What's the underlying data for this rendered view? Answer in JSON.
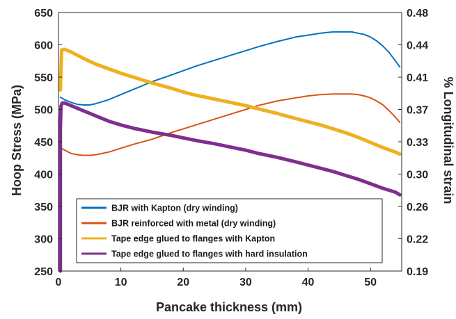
{
  "chart_data": {
    "type": "line",
    "xlabel": "Pancake thickness (mm)",
    "ylabel_left": "Hoop Stress (MPa)",
    "ylabel_right": "% Longitudinal strain",
    "xlim": [
      0,
      55
    ],
    "ylim_left": [
      250,
      650
    ],
    "ylim_right": [
      0.19,
      0.48
    ],
    "x_ticks": [
      "0",
      "10",
      "20",
      "30",
      "40",
      "50"
    ],
    "y_left_ticks": [
      "250",
      "300",
      "350",
      "400",
      "450",
      "500",
      "550",
      "600",
      "650"
    ],
    "y_right_ticks": [
      "0.19",
      "0.22",
      "0.26",
      "0.30",
      "0.33",
      "0.37",
      "0.41",
      "0.44",
      "0.48"
    ],
    "grid": false,
    "legend_position": "bottom-left",
    "series": [
      {
        "name": "BJR with Kapton (dry winding)",
        "color": "#0072BD",
        "axis": "left",
        "x": [
          0.3,
          1,
          2,
          3,
          4,
          5,
          6,
          8,
          10,
          12,
          15,
          18,
          20,
          22,
          25,
          28,
          30,
          32,
          35,
          38,
          40,
          42,
          44,
          46,
          47,
          48,
          49,
          50,
          51,
          52,
          53,
          54,
          54.7
        ],
        "y": [
          519,
          515,
          511,
          508,
          507,
          507,
          509,
          515,
          523,
          531,
          543,
          553,
          560,
          567,
          576,
          585,
          591,
          597,
          605,
          612,
          615,
          618,
          620,
          620,
          620,
          618,
          616,
          612,
          606,
          598,
          588,
          575,
          566
        ]
      },
      {
        "name": "BJR reinforced with metal (dry winding)",
        "color": "#D95319",
        "axis": "left",
        "x": [
          0.3,
          1,
          2,
          3,
          4,
          5,
          6,
          8,
          10,
          12,
          15,
          18,
          20,
          22,
          25,
          28,
          30,
          32,
          35,
          38,
          40,
          42,
          44,
          46,
          47,
          48,
          49,
          50,
          51,
          52,
          53,
          54,
          54.7
        ],
        "y": [
          441,
          437,
          432,
          430,
          429,
          429,
          430,
          434,
          440,
          446,
          454,
          464,
          470,
          476,
          485,
          494,
          500,
          506,
          513,
          518,
          521,
          523,
          524,
          524,
          524,
          523,
          521,
          518,
          513,
          507,
          498,
          488,
          480
        ]
      },
      {
        "name": "Tape edge glued to flanges with Kapton",
        "color": "#EDB120",
        "axis": "left",
        "x": [
          0.3,
          0.5,
          1,
          2,
          4,
          6,
          8,
          10,
          12,
          15,
          18,
          20,
          22,
          25,
          28,
          30,
          32,
          35,
          38,
          40,
          42,
          44,
          46,
          48,
          50,
          52,
          54,
          54.7
        ],
        "y": [
          530,
          592,
          593,
          589,
          579,
          570,
          563,
          556,
          550,
          541,
          533,
          527,
          522,
          516,
          510,
          506,
          501,
          494,
          486,
          481,
          476,
          470,
          464,
          457,
          449,
          441,
          434,
          431
        ]
      },
      {
        "name": "Tape edge glued to flanges with hard insulation",
        "color": "#7E2F8E",
        "axis": "left",
        "x": [
          0.3,
          0.3,
          0.4,
          0.6,
          1,
          2,
          4,
          6,
          8,
          10,
          12,
          15,
          18,
          20,
          22,
          25,
          28,
          30,
          32,
          35,
          38,
          40,
          42,
          44,
          46,
          48,
          50,
          52,
          54,
          54.7
        ],
        "y": [
          250,
          470,
          505,
          510,
          510,
          506,
          498,
          490,
          482,
          476,
          471,
          465,
          460,
          456,
          452,
          447,
          441,
          437,
          432,
          426,
          419,
          414,
          409,
          404,
          398,
          392,
          385,
          378,
          372,
          368
        ]
      }
    ]
  }
}
